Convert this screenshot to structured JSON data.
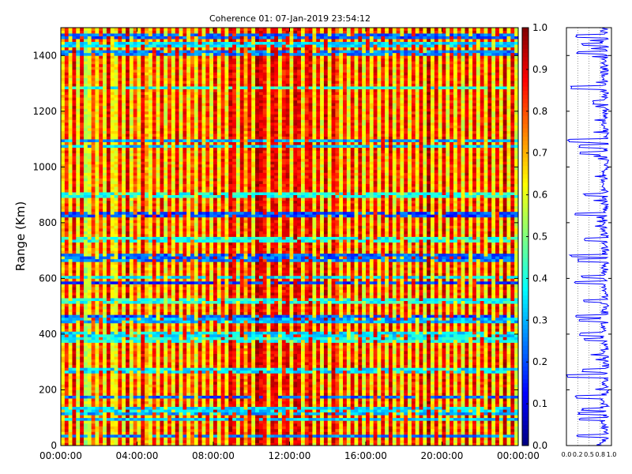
{
  "chart_data": [
    {
      "type": "heatmap",
      "title": "Coherence 01: 07-Jan-2019 23:54:12",
      "ylabel": "Range (Km)",
      "xlabel": "",
      "x_ticks": [
        "00:00:00",
        "04:00:00",
        "08:00:00",
        "12:00:00",
        "16:00:00",
        "20:00:00",
        "00:00:00"
      ],
      "x_range_hours": [
        0,
        24
      ],
      "y_ticks": [
        0,
        200,
        400,
        600,
        800,
        1000,
        1200,
        1400
      ],
      "ylim": [
        0,
        1500
      ],
      "colorbar": {
        "colormap": "jet",
        "range": [
          0.0,
          1.0
        ],
        "ticks": [
          "0.0",
          "0.1",
          "0.2",
          "0.3",
          "0.4",
          "0.5",
          "0.6",
          "0.7",
          "0.8",
          "0.9",
          "1.0"
        ]
      },
      "column_levels": [
        0.65,
        0.85,
        0.62,
        0.9,
        0.6,
        0.88,
        0.55,
        0.6,
        0.8,
        0.62,
        0.82,
        0.6,
        0.9,
        0.63,
        0.62,
        0.85,
        0.6,
        0.92,
        0.6,
        0.8,
        0.62,
        0.9,
        0.7,
        0.62,
        0.85,
        0.62,
        0.88,
        0.6,
        0.82,
        0.62,
        0.9,
        0.6,
        0.86,
        0.62,
        0.8,
        0.6,
        0.88,
        0.62,
        0.84,
        0.6,
        0.9,
        0.62,
        0.86,
        0.62,
        0.92,
        0.85,
        0.6,
        0.9,
        0.7,
        0.88,
        0.62,
        0.95,
        0.9,
        0.86,
        0.62,
        0.9,
        0.88,
        0.62,
        0.86,
        0.9,
        0.62,
        0.92,
        0.88,
        0.62,
        0.85,
        0.9,
        0.62,
        0.88,
        0.6,
        0.92,
        0.62,
        0.9,
        0.8,
        0.62,
        0.86,
        0.6,
        0.88,
        0.62,
        0.9,
        0.6,
        0.85,
        0.62,
        0.88,
        0.6,
        0.86,
        0.62,
        0.9,
        0.6,
        0.84,
        0.62,
        0.88,
        0.6,
        0.86,
        0.62,
        0.9,
        0.6,
        0.95,
        0.62,
        0.88,
        0.62,
        0.9,
        0.6,
        0.86,
        0.62,
        0.84,
        0.6,
        0.9,
        0.62,
        0.88,
        0.6,
        0.86,
        0.62,
        0.92,
        0.6,
        0.88,
        0.62,
        0.94,
        0.62,
        0.9,
        0.6
      ],
      "low_bands_km": [
        {
          "y": 35,
          "v": 0.25
        },
        {
          "y": 95,
          "v": 0.32
        },
        {
          "y": 115,
          "v": 0.3
        },
        {
          "y": 130,
          "v": 0.35
        },
        {
          "y": 175,
          "v": 0.22
        },
        {
          "y": 270,
          "v": 0.35
        },
        {
          "y": 380,
          "v": 0.4
        },
        {
          "y": 400,
          "v": 0.35
        },
        {
          "y": 450,
          "v": 0.3
        },
        {
          "y": 465,
          "v": 0.22
        },
        {
          "y": 520,
          "v": 0.4
        },
        {
          "y": 585,
          "v": 0.18
        },
        {
          "y": 605,
          "v": 0.35
        },
        {
          "y": 665,
          "v": 0.25
        },
        {
          "y": 680,
          "v": 0.22
        },
        {
          "y": 740,
          "v": 0.4
        },
        {
          "y": 830,
          "v": 0.2
        },
        {
          "y": 900,
          "v": 0.4
        },
        {
          "y": 1075,
          "v": 0.32
        },
        {
          "y": 1095,
          "v": 0.3
        },
        {
          "y": 1285,
          "v": 0.4
        },
        {
          "y": 1410,
          "v": 0.25
        },
        {
          "y": 1440,
          "v": 0.35
        },
        {
          "y": 1470,
          "v": 0.22
        }
      ]
    },
    {
      "type": "line",
      "title": "",
      "xlabel": "",
      "ylabel": "",
      "x_ticks": [
        "0.0",
        "0.2",
        "0.5",
        "0.8",
        "1.0"
      ],
      "xlim": [
        0.0,
        1.0
      ],
      "ylim": [
        0,
        1500
      ],
      "grid": true,
      "series_color": "#0000ff",
      "profile": [
        {
          "r": 0,
          "v": 0.9
        },
        {
          "r": 20,
          "v": 0.85
        },
        {
          "r": 35,
          "v": 0.25
        },
        {
          "r": 50,
          "v": 0.88
        },
        {
          "r": 95,
          "v": 0.3
        },
        {
          "r": 115,
          "v": 0.28
        },
        {
          "r": 130,
          "v": 0.35
        },
        {
          "r": 175,
          "v": 0.22
        },
        {
          "r": 200,
          "v": 0.85
        },
        {
          "r": 250,
          "v": 0.02
        },
        {
          "r": 270,
          "v": 0.35
        },
        {
          "r": 320,
          "v": 0.86
        },
        {
          "r": 380,
          "v": 0.4
        },
        {
          "r": 400,
          "v": 0.3
        },
        {
          "r": 450,
          "v": 0.3
        },
        {
          "r": 465,
          "v": 0.22
        },
        {
          "r": 520,
          "v": 0.4
        },
        {
          "r": 585,
          "v": 0.18
        },
        {
          "r": 605,
          "v": 0.35
        },
        {
          "r": 665,
          "v": 0.25
        },
        {
          "r": 680,
          "v": 0.1
        },
        {
          "r": 740,
          "v": 0.4
        },
        {
          "r": 800,
          "v": 0.85
        },
        {
          "r": 830,
          "v": 0.2
        },
        {
          "r": 900,
          "v": 0.4
        },
        {
          "r": 960,
          "v": 0.86
        },
        {
          "r": 1050,
          "v": 0.3
        },
        {
          "r": 1075,
          "v": 0.3
        },
        {
          "r": 1095,
          "v": 0.05
        },
        {
          "r": 1150,
          "v": 0.85
        },
        {
          "r": 1230,
          "v": 0.6
        },
        {
          "r": 1285,
          "v": 0.12
        },
        {
          "r": 1350,
          "v": 0.86
        },
        {
          "r": 1410,
          "v": 0.25
        },
        {
          "r": 1440,
          "v": 0.35
        },
        {
          "r": 1470,
          "v": 0.22
        },
        {
          "r": 1500,
          "v": 0.88
        }
      ]
    }
  ]
}
